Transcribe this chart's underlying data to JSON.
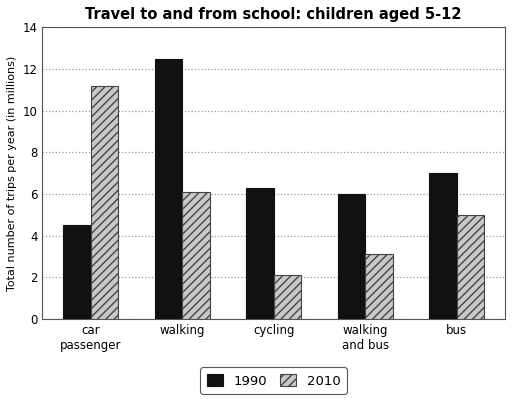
{
  "title": "Travel to and from school: children aged 5-12",
  "ylabel": "Total number of trips per year (in millions)",
  "categories": [
    "car\npassenger",
    "walking",
    "cycling",
    "walking\nand bus",
    "bus"
  ],
  "values_1990": [
    4.5,
    12.5,
    6.3,
    6.0,
    7.0
  ],
  "values_2010": [
    11.2,
    6.1,
    2.1,
    3.1,
    5.0
  ],
  "color_1990": "#111111",
  "color_2010_face": "#c8c8c8",
  "color_2010_edge": "#444444",
  "ylim": [
    0,
    14
  ],
  "yticks": [
    0,
    2,
    4,
    6,
    8,
    10,
    12,
    14
  ],
  "bar_width": 0.3,
  "legend_labels": [
    "1990",
    "2010"
  ],
  "hatch_pattern": "////",
  "grid_color": "#999999",
  "background_color": "#ffffff"
}
